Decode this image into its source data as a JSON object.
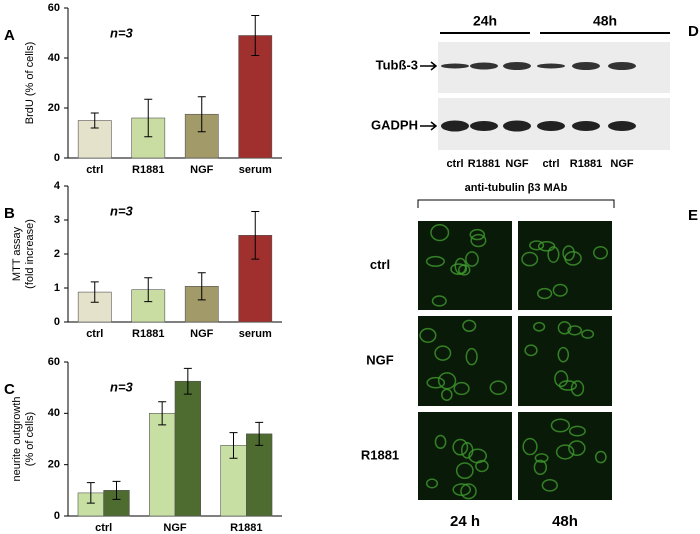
{
  "chart_data": [
    {
      "type": "bar",
      "panel": "A",
      "ylabel": [
        "BrdU (% of cells)"
      ],
      "annotation": "n=3",
      "categories": [
        "ctrl",
        "R1881",
        "NGF",
        "serum"
      ],
      "series": [
        {
          "values": [
            15,
            16,
            17.5,
            49
          ],
          "errors": [
            3,
            7.5,
            7,
            8
          ],
          "colors": [
            "#e5e2cb",
            "#c9dca2",
            "#a29a69",
            "#a0302e"
          ]
        }
      ],
      "ylim": [
        0,
        60
      ],
      "yticks": [
        0,
        20,
        40,
        60
      ]
    },
    {
      "type": "bar",
      "panel": "B",
      "ylabel": [
        "MTT assay",
        "(fold increase)"
      ],
      "annotation": "n=3",
      "categories": [
        "ctrl",
        "R1881",
        "NGF",
        "serum"
      ],
      "series": [
        {
          "values": [
            0.88,
            0.95,
            1.05,
            2.55
          ],
          "errors": [
            0.3,
            0.35,
            0.4,
            0.7
          ],
          "colors": [
            "#e5e2cb",
            "#c9dca2",
            "#a29a69",
            "#a0302e"
          ]
        }
      ],
      "ylim": [
        0,
        4
      ],
      "yticks": [
        0,
        1,
        2,
        3,
        4
      ]
    },
    {
      "type": "bar",
      "panel": "C",
      "ylabel": [
        "neurite outgrowth",
        "(% of cells)"
      ],
      "annotation": "n=3",
      "categories": [
        "ctrl",
        "NGF",
        "R1881"
      ],
      "series": [
        {
          "values": [
            9,
            40,
            27.5
          ],
          "errors": [
            4,
            4.5,
            5
          ],
          "color": "#c8dfa4"
        },
        {
          "values": [
            10,
            52.5,
            32
          ],
          "errors": [
            3.5,
            5,
            4.5
          ],
          "color": "#4e6b30"
        }
      ],
      "ylim": [
        0,
        60
      ],
      "yticks": [
        0,
        20,
        40,
        60
      ]
    }
  ],
  "blot": {
    "panel": "D",
    "time_labels": [
      "24h",
      "48h"
    ],
    "rows": [
      "Tubß-3",
      "GADPH"
    ],
    "lanes": [
      "ctrl",
      "R1881",
      "NGF",
      "ctrl",
      "R1881",
      "NGF"
    ]
  },
  "imaging": {
    "panel": "E",
    "title": "anti-tubulin β3 MAb",
    "rows": [
      "ctrl",
      "NGF",
      "R1881"
    ],
    "columns": [
      "24 h",
      "48h"
    ]
  }
}
